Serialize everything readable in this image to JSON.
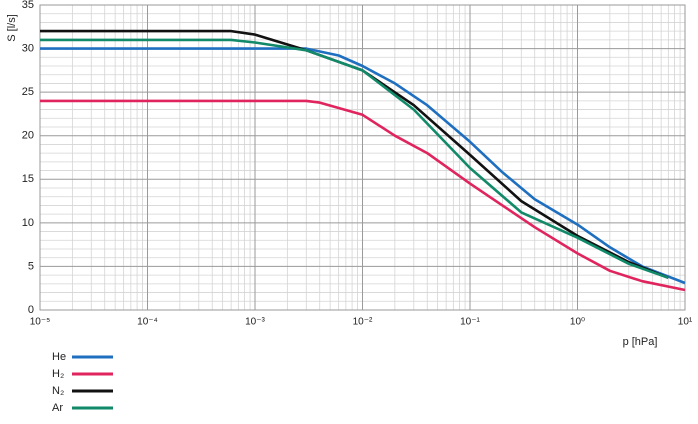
{
  "chart_data": {
    "type": "line",
    "xlabel": "p [hPa]",
    "ylabel": "S [l/s]",
    "xscale": "log",
    "grid": true,
    "xlim": [
      1e-05,
      10
    ],
    "ylim": [
      0,
      35
    ],
    "xticks": [
      {
        "value": 1e-05,
        "label": "10⁻⁵"
      },
      {
        "value": 0.0001,
        "label": "10⁻⁴"
      },
      {
        "value": 0.001,
        "label": "10⁻³"
      },
      {
        "value": 0.01,
        "label": "10⁻²"
      },
      {
        "value": 0.1,
        "label": "10⁻¹"
      },
      {
        "value": 1,
        "label": "10⁰"
      },
      {
        "value": 10,
        "label": "10¹"
      }
    ],
    "yticks": [
      0,
      5,
      10,
      15,
      20,
      25,
      30,
      35
    ],
    "series": [
      {
        "name": "He",
        "color": "#1f6fc0",
        "x": [
          1e-05,
          0.001,
          0.003,
          0.006,
          0.01,
          0.02,
          0.04,
          0.1,
          0.2,
          0.4,
          1,
          2,
          4,
          10
        ],
        "values": [
          30,
          30,
          30,
          29.2,
          28,
          26,
          23.5,
          19.3,
          15.8,
          12.7,
          9.8,
          7.2,
          5,
          3.1
        ]
      },
      {
        "name": "H₂",
        "color": "#e0245e",
        "x": [
          1e-05,
          0.003,
          0.004,
          0.01,
          0.02,
          0.04,
          0.1,
          0.2,
          0.4,
          1,
          2,
          4,
          10
        ],
        "values": [
          24,
          24,
          23.8,
          22.4,
          20,
          18,
          14.5,
          12,
          9.5,
          6.5,
          4.5,
          3.3,
          2.3
        ]
      },
      {
        "name": "N₂",
        "color": "#111111",
        "x": [
          1e-05,
          0.0006,
          0.001,
          0.003,
          0.01,
          0.03,
          0.1,
          0.3,
          1,
          3,
          7
        ],
        "values": [
          32,
          32,
          31.6,
          29.8,
          27.5,
          23.5,
          17.8,
          12.5,
          8.5,
          5.5,
          3.7
        ]
      },
      {
        "name": "Ar",
        "color": "#128a6a",
        "x": [
          1e-05,
          0.0006,
          0.001,
          0.003,
          0.01,
          0.03,
          0.1,
          0.3,
          1,
          3,
          7
        ],
        "values": [
          31,
          31,
          30.7,
          29.8,
          27.5,
          23,
          16.3,
          11.2,
          8.3,
          5.3,
          3.7
        ]
      }
    ]
  }
}
